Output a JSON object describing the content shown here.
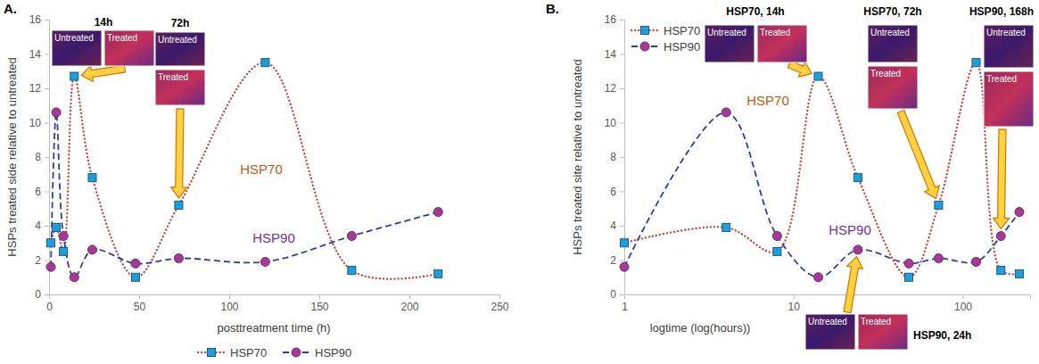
{
  "chart_data": [
    {
      "type": "line",
      "panel_label": "A.",
      "x_label": "posttreatment time (h)",
      "y_label": "HSPs treated side relative to untreated",
      "x": [
        1,
        4,
        8,
        14,
        24,
        48,
        72,
        120,
        168,
        216
      ],
      "series": [
        {
          "name": "HSP70",
          "color": "#c0504d",
          "marker": "square",
          "line_style": "dotted",
          "values": [
            3.0,
            3.9,
            2.5,
            12.7,
            6.8,
            1.0,
            5.2,
            13.5,
            1.4,
            1.2
          ]
        },
        {
          "name": "HSP90",
          "color": "#2e3fa3",
          "marker": "circle",
          "line_style": "dashed",
          "values": [
            1.6,
            10.6,
            3.4,
            1.0,
            2.6,
            1.8,
            2.1,
            1.9,
            3.4,
            4.8
          ]
        }
      ],
      "xlim": [
        0,
        250
      ],
      "xticks": [
        0,
        50,
        100,
        150,
        200,
        250
      ],
      "ylim": [
        0,
        16
      ],
      "yticks": [
        0,
        2,
        4,
        6,
        8,
        10,
        12,
        14,
        16
      ],
      "grid": false,
      "legend": "bottom",
      "annotations": [
        "HSP70",
        "HSP90"
      ],
      "insets": [
        {
          "title": "14h",
          "images": [
            "Untreated",
            "Treated"
          ]
        },
        {
          "title": "72h",
          "images": [
            "Untreated",
            "Treated"
          ]
        }
      ]
    },
    {
      "type": "line",
      "panel_label": "B.",
      "x_label": "logtime (log(hours))",
      "y_label": "HSPs treated site relative to untreated",
      "x": [
        1,
        4,
        8,
        14,
        24,
        48,
        72,
        120,
        168,
        216
      ],
      "series": [
        {
          "name": "HSP70",
          "color": "#c0504d",
          "marker": "square",
          "line_style": "dotted",
          "values": [
            3.0,
            3.9,
            2.5,
            12.7,
            6.8,
            1.0,
            5.2,
            13.5,
            1.4,
            1.2
          ]
        },
        {
          "name": "HSP90",
          "color": "#2e3fa3",
          "marker": "circle",
          "line_style": "dashed",
          "values": [
            1.6,
            10.6,
            3.4,
            1.0,
            2.6,
            1.8,
            2.1,
            1.9,
            3.4,
            4.8
          ]
        }
      ],
      "log": "x",
      "xlim": [
        1,
        250
      ],
      "xticks": [
        1,
        10,
        100
      ],
      "ylim": [
        0,
        16
      ],
      "yticks": [
        0,
        2,
        4,
        6,
        8,
        10,
        12,
        14,
        16
      ],
      "grid": false,
      "legend": "top-left",
      "annotations": [
        "HSP70",
        "HSP90"
      ],
      "insets": [
        {
          "title": "HSP70, 14h",
          "images": [
            "Untreated",
            "Treated"
          ]
        },
        {
          "title": "HSP70, 72h",
          "images": [
            "Untreated",
            "Treated"
          ]
        },
        {
          "title": "HSP90, 168h",
          "images": [
            "Untreated",
            "Treated"
          ]
        },
        {
          "title": "HSP90, 24h",
          "images": [
            "Untreated",
            "Treated"
          ]
        }
      ]
    }
  ]
}
